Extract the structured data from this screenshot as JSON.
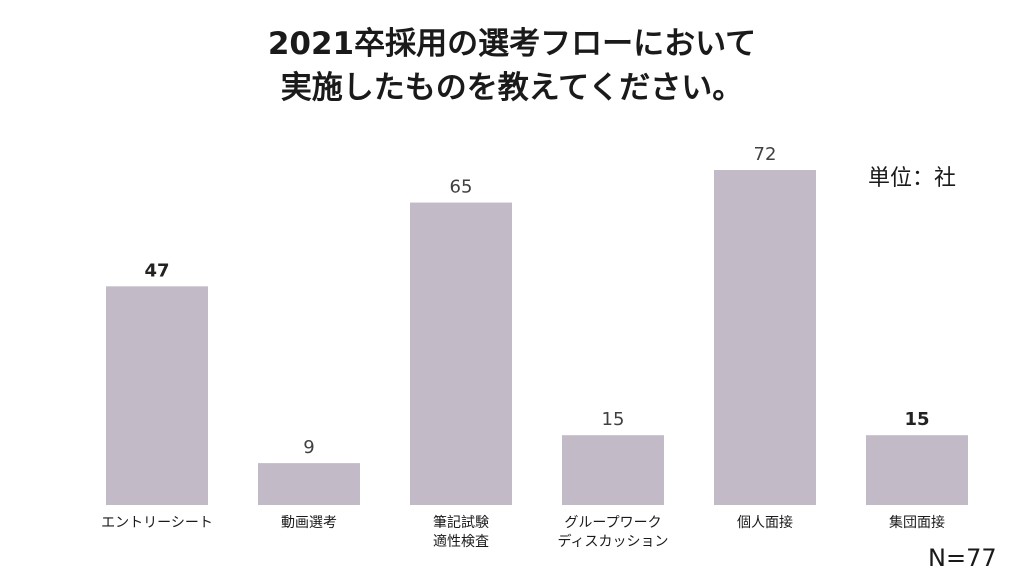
{
  "chart_data": {
    "type": "bar",
    "title_lines": [
      "2021卒採用の選考フローにおいて",
      "実施したものを教えてください。"
    ],
    "unit_label": "単位：社",
    "n_label": "N=77",
    "categories": [
      [
        "エントリーシート"
      ],
      [
        "動画選考"
      ],
      [
        "筆記試験",
        "適性検査"
      ],
      [
        "グループワーク",
        "ディスカッション"
      ],
      [
        "個人面接"
      ],
      [
        "集団面接"
      ]
    ],
    "values": [
      47,
      9,
      65,
      15,
      72,
      15
    ],
    "bold_labels": [
      true,
      false,
      false,
      false,
      false,
      true
    ],
    "bar_color": "#c2bac6",
    "ylim": [
      0,
      72
    ],
    "grid": false
  }
}
